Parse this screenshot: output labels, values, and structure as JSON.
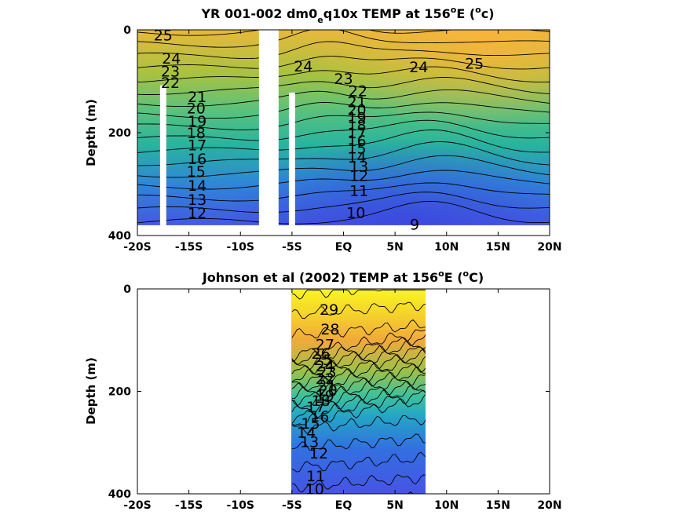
{
  "chart_data": [
    {
      "type": "contour",
      "title_parts": [
        "YR 001-002 dm0",
        "e",
        "q10x TEMP at 156",
        "o",
        "E (",
        "o",
        "c)"
      ],
      "ylabel": "Depth (m)",
      "xlim": [
        -20,
        20
      ],
      "ylim": [
        400,
        0
      ],
      "xticks": [
        -20,
        -15,
        -10,
        -5,
        0,
        5,
        10,
        15,
        20
      ],
      "xtick_labels": [
        "-20S",
        "-15S",
        "-10S",
        "-5S",
        "EQ",
        "5N",
        "10N",
        "15N",
        "20N"
      ],
      "yticks": [
        0,
        200,
        400
      ],
      "ytick_labels": [
        "0",
        "200",
        "400"
      ],
      "data_extent": {
        "lat": [
          -20,
          20
        ],
        "depth": [
          0,
          380
        ]
      },
      "gaps": [
        {
          "lat": [
            -17.8,
            -17.2
          ],
          "depth": [
            108,
            380
          ]
        },
        {
          "lat": [
            -8.2,
            -6.3
          ],
          "depth": [
            0,
            400
          ]
        },
        {
          "lat": [
            -5.3,
            -4.7
          ],
          "depth": [
            122,
            380
          ]
        }
      ],
      "contour_levels": [
        9,
        10,
        11,
        12,
        13,
        14,
        15,
        16,
        17,
        18,
        19,
        20,
        21,
        22,
        23,
        24,
        25
      ],
      "contour_labels": [
        {
          "text": "25",
          "lat": -17.5,
          "depth": 10
        },
        {
          "text": "24",
          "lat": -16.7,
          "depth": 55
        },
        {
          "text": "23",
          "lat": -16.8,
          "depth": 80
        },
        {
          "text": "22",
          "lat": -16.8,
          "depth": 102
        },
        {
          "text": "21",
          "lat": -14.2,
          "depth": 130
        },
        {
          "text": "20",
          "lat": -14.3,
          "depth": 152
        },
        {
          "text": "19",
          "lat": -14.2,
          "depth": 177
        },
        {
          "text": "18",
          "lat": -14.3,
          "depth": 200
        },
        {
          "text": "17",
          "lat": -14.2,
          "depth": 224
        },
        {
          "text": "16",
          "lat": -14.2,
          "depth": 250
        },
        {
          "text": "15",
          "lat": -14.3,
          "depth": 275
        },
        {
          "text": "14",
          "lat": -14.2,
          "depth": 302
        },
        {
          "text": "13",
          "lat": -14.2,
          "depth": 330
        },
        {
          "text": "12",
          "lat": -14.2,
          "depth": 356
        },
        {
          "text": "24",
          "lat": -3.9,
          "depth": 70
        },
        {
          "text": "23",
          "lat": 0.0,
          "depth": 95
        },
        {
          "text": "22",
          "lat": 1.4,
          "depth": 118
        },
        {
          "text": "21",
          "lat": 1.3,
          "depth": 140
        },
        {
          "text": "20",
          "lat": 1.3,
          "depth": 155
        },
        {
          "text": "19",
          "lat": 1.3,
          "depth": 170
        },
        {
          "text": "18",
          "lat": 1.3,
          "depth": 185
        },
        {
          "text": "17",
          "lat": 1.3,
          "depth": 200
        },
        {
          "text": "16",
          "lat": 1.3,
          "depth": 215
        },
        {
          "text": "15",
          "lat": 1.3,
          "depth": 230
        },
        {
          "text": "14",
          "lat": 1.3,
          "depth": 247
        },
        {
          "text": "13",
          "lat": 1.5,
          "depth": 265
        },
        {
          "text": "12",
          "lat": 1.5,
          "depth": 283
        },
        {
          "text": "11",
          "lat": 1.5,
          "depth": 312
        },
        {
          "text": "10",
          "lat": 1.2,
          "depth": 355
        },
        {
          "text": "9",
          "lat": 6.9,
          "depth": 378
        },
        {
          "text": "24",
          "lat": 7.3,
          "depth": 72
        },
        {
          "text": "25",
          "lat": 12.7,
          "depth": 65
        }
      ]
    },
    {
      "type": "contour",
      "title_parts": [
        "Johnson et al (2002) TEMP at 156",
        "o",
        "E (",
        "o",
        "C)"
      ],
      "ylabel": "Depth (m)",
      "xlim": [
        -20,
        20
      ],
      "ylim": [
        400,
        0
      ],
      "xticks": [
        -20,
        -15,
        -10,
        -5,
        0,
        5,
        10,
        15,
        20
      ],
      "xtick_labels": [
        "-20S",
        "-15S",
        "-10S",
        "-5S",
        "EQ",
        "5N",
        "10N",
        "15N",
        "20N"
      ],
      "yticks": [
        0,
        200,
        400
      ],
      "ytick_labels": [
        "0",
        "200",
        "400"
      ],
      "data_extent": {
        "lat": [
          -5,
          8
        ],
        "depth": [
          0,
          400
        ]
      },
      "contour_levels": [
        9,
        10,
        11,
        12,
        13,
        14,
        15,
        16,
        17,
        18,
        19,
        20,
        21,
        22,
        23,
        24,
        25,
        26,
        27,
        28,
        29
      ],
      "contour_labels": [
        {
          "text": "29",
          "lat": -1.4,
          "depth": 40
        },
        {
          "text": "28",
          "lat": -1.3,
          "depth": 78
        },
        {
          "text": "27",
          "lat": -1.8,
          "depth": 108
        },
        {
          "text": "26",
          "lat": -2.2,
          "depth": 126
        },
        {
          "text": "25",
          "lat": -2.0,
          "depth": 138
        },
        {
          "text": "24",
          "lat": -1.8,
          "depth": 150
        },
        {
          "text": "23",
          "lat": -1.6,
          "depth": 162
        },
        {
          "text": "22",
          "lat": -1.8,
          "depth": 175
        },
        {
          "text": "21",
          "lat": -1.6,
          "depth": 188
        },
        {
          "text": "20",
          "lat": -1.5,
          "depth": 198
        },
        {
          "text": "19",
          "lat": -1.8,
          "depth": 208
        },
        {
          "text": "18",
          "lat": -2.2,
          "depth": 218
        },
        {
          "text": "17",
          "lat": -2.7,
          "depth": 230
        },
        {
          "text": "16",
          "lat": -2.3,
          "depth": 248
        },
        {
          "text": "15",
          "lat": -3.2,
          "depth": 262
        },
        {
          "text": "14",
          "lat": -3.6,
          "depth": 280
        },
        {
          "text": "13",
          "lat": -3.3,
          "depth": 298
        },
        {
          "text": "12",
          "lat": -2.4,
          "depth": 320
        },
        {
          "text": "11",
          "lat": -2.7,
          "depth": 365
        },
        {
          "text": "10",
          "lat": -2.8,
          "depth": 390
        }
      ]
    }
  ]
}
